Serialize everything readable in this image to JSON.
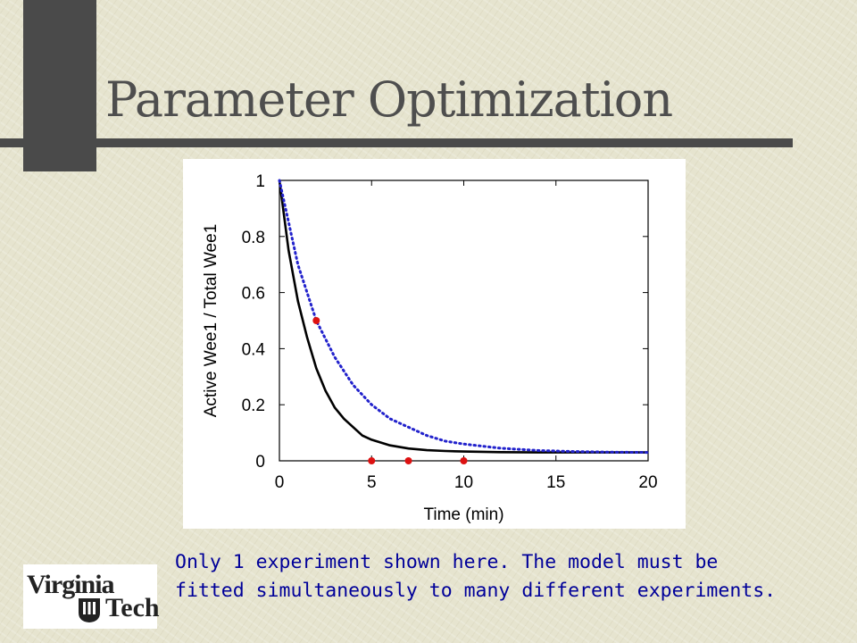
{
  "slide": {
    "title": "Parameter Optimization",
    "caption": "Only 1 experiment shown here.  The model must be\nfitted simultaneously to many different experiments.",
    "logo_text": [
      "Virginia",
      "Tech"
    ],
    "colors": {
      "title": "#4e4e4e",
      "caption": "#000099",
      "bars": "#4a4a4a"
    }
  },
  "chart_data": {
    "type": "line",
    "xlabel": "Time (min)",
    "ylabel": "Active Wee1 / Total Wee1",
    "xlim": [
      0,
      20
    ],
    "ylim": [
      0,
      1
    ],
    "xticks": [
      0,
      5,
      10,
      15,
      20
    ],
    "yticks": [
      0,
      0.2,
      0.4,
      0.6,
      0.8,
      1
    ],
    "ytick_labels": [
      "0",
      "0.2",
      "0.4",
      "0.6",
      "0.8",
      "1"
    ],
    "grid": false,
    "series": [
      {
        "style": "solid",
        "color": "#000000",
        "x": [
          0,
          0.5,
          1,
          1.5,
          2,
          2.5,
          3,
          3.5,
          4,
          4.5,
          5,
          6,
          7,
          8,
          9,
          10,
          12,
          14,
          16,
          18,
          20
        ],
        "y": [
          1.0,
          0.75,
          0.57,
          0.44,
          0.33,
          0.25,
          0.19,
          0.15,
          0.12,
          0.09,
          0.075,
          0.055,
          0.044,
          0.038,
          0.035,
          0.033,
          0.031,
          0.03,
          0.03,
          0.03,
          0.03
        ]
      },
      {
        "style": "dotted",
        "color": "#2222cc",
        "x": [
          0,
          1,
          2,
          3,
          4,
          5,
          6,
          7,
          8,
          9,
          10,
          12,
          14,
          16,
          18,
          20
        ],
        "y": [
          1.0,
          0.7,
          0.5,
          0.37,
          0.27,
          0.2,
          0.15,
          0.12,
          0.09,
          0.07,
          0.06,
          0.045,
          0.037,
          0.033,
          0.031,
          0.03
        ]
      }
    ],
    "points": {
      "color": "#dd1111",
      "x": [
        2,
        5,
        7,
        10
      ],
      "y": [
        0.5,
        0,
        0,
        0
      ]
    }
  }
}
